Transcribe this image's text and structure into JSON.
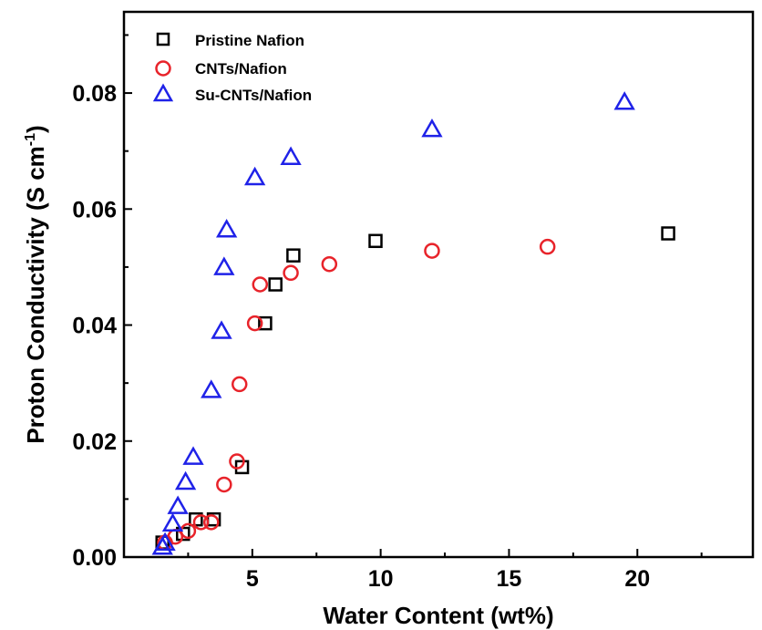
{
  "chart_data": {
    "type": "scatter",
    "title": "",
    "xlabel": "Water Content (wt%)",
    "ylabel_main": "Proton Conductivity (S cm",
    "ylabel_sup": "-1",
    "ylabel_close": ")",
    "xlim": [
      0,
      24.5
    ],
    "ylim": [
      0,
      0.094
    ],
    "xticks": [
      5,
      10,
      15,
      20
    ],
    "xtick_labels": [
      "5",
      "10",
      "15",
      "20"
    ],
    "yticks": [
      0,
      0.02,
      0.04,
      0.06,
      0.08
    ],
    "ytick_labels": [
      "0.00",
      "0.02",
      "0.04",
      "0.06",
      "0.08"
    ],
    "grid": false,
    "legend": "top-left",
    "series": [
      {
        "name": "Pristine Nafion",
        "marker": "square",
        "color": "#000000",
        "x": [
          1.5,
          2.3,
          2.8,
          3.5,
          4.6,
          5.5,
          5.9,
          6.6,
          9.8,
          21.2
        ],
        "y": [
          0.0025,
          0.004,
          0.0065,
          0.0065,
          0.0155,
          0.0403,
          0.047,
          0.052,
          0.0545,
          0.0558
        ]
      },
      {
        "name": "CNTs/Nafion",
        "marker": "circle",
        "color": "#e8232a",
        "x": [
          1.6,
          2.0,
          2.5,
          3.0,
          3.4,
          3.9,
          4.4,
          4.5,
          5.1,
          5.3,
          6.5,
          8.0,
          12.0,
          16.5
        ],
        "y": [
          0.0025,
          0.0035,
          0.0045,
          0.006,
          0.006,
          0.0125,
          0.0165,
          0.0298,
          0.0403,
          0.047,
          0.049,
          0.0505,
          0.0528,
          0.0535
        ]
      },
      {
        "name": "Su-CNTs/Nafion",
        "marker": "triangle",
        "color": "#1f22e8",
        "x": [
          1.5,
          1.6,
          1.9,
          2.1,
          2.4,
          2.7,
          3.4,
          3.8,
          3.9,
          4.0,
          5.1,
          6.5,
          12.0,
          19.5
        ],
        "y": [
          0.0018,
          0.0025,
          0.0058,
          0.0088,
          0.013,
          0.0173,
          0.0288,
          0.039,
          0.05,
          0.0565,
          0.0655,
          0.069,
          0.0738,
          0.0785
        ]
      }
    ]
  }
}
